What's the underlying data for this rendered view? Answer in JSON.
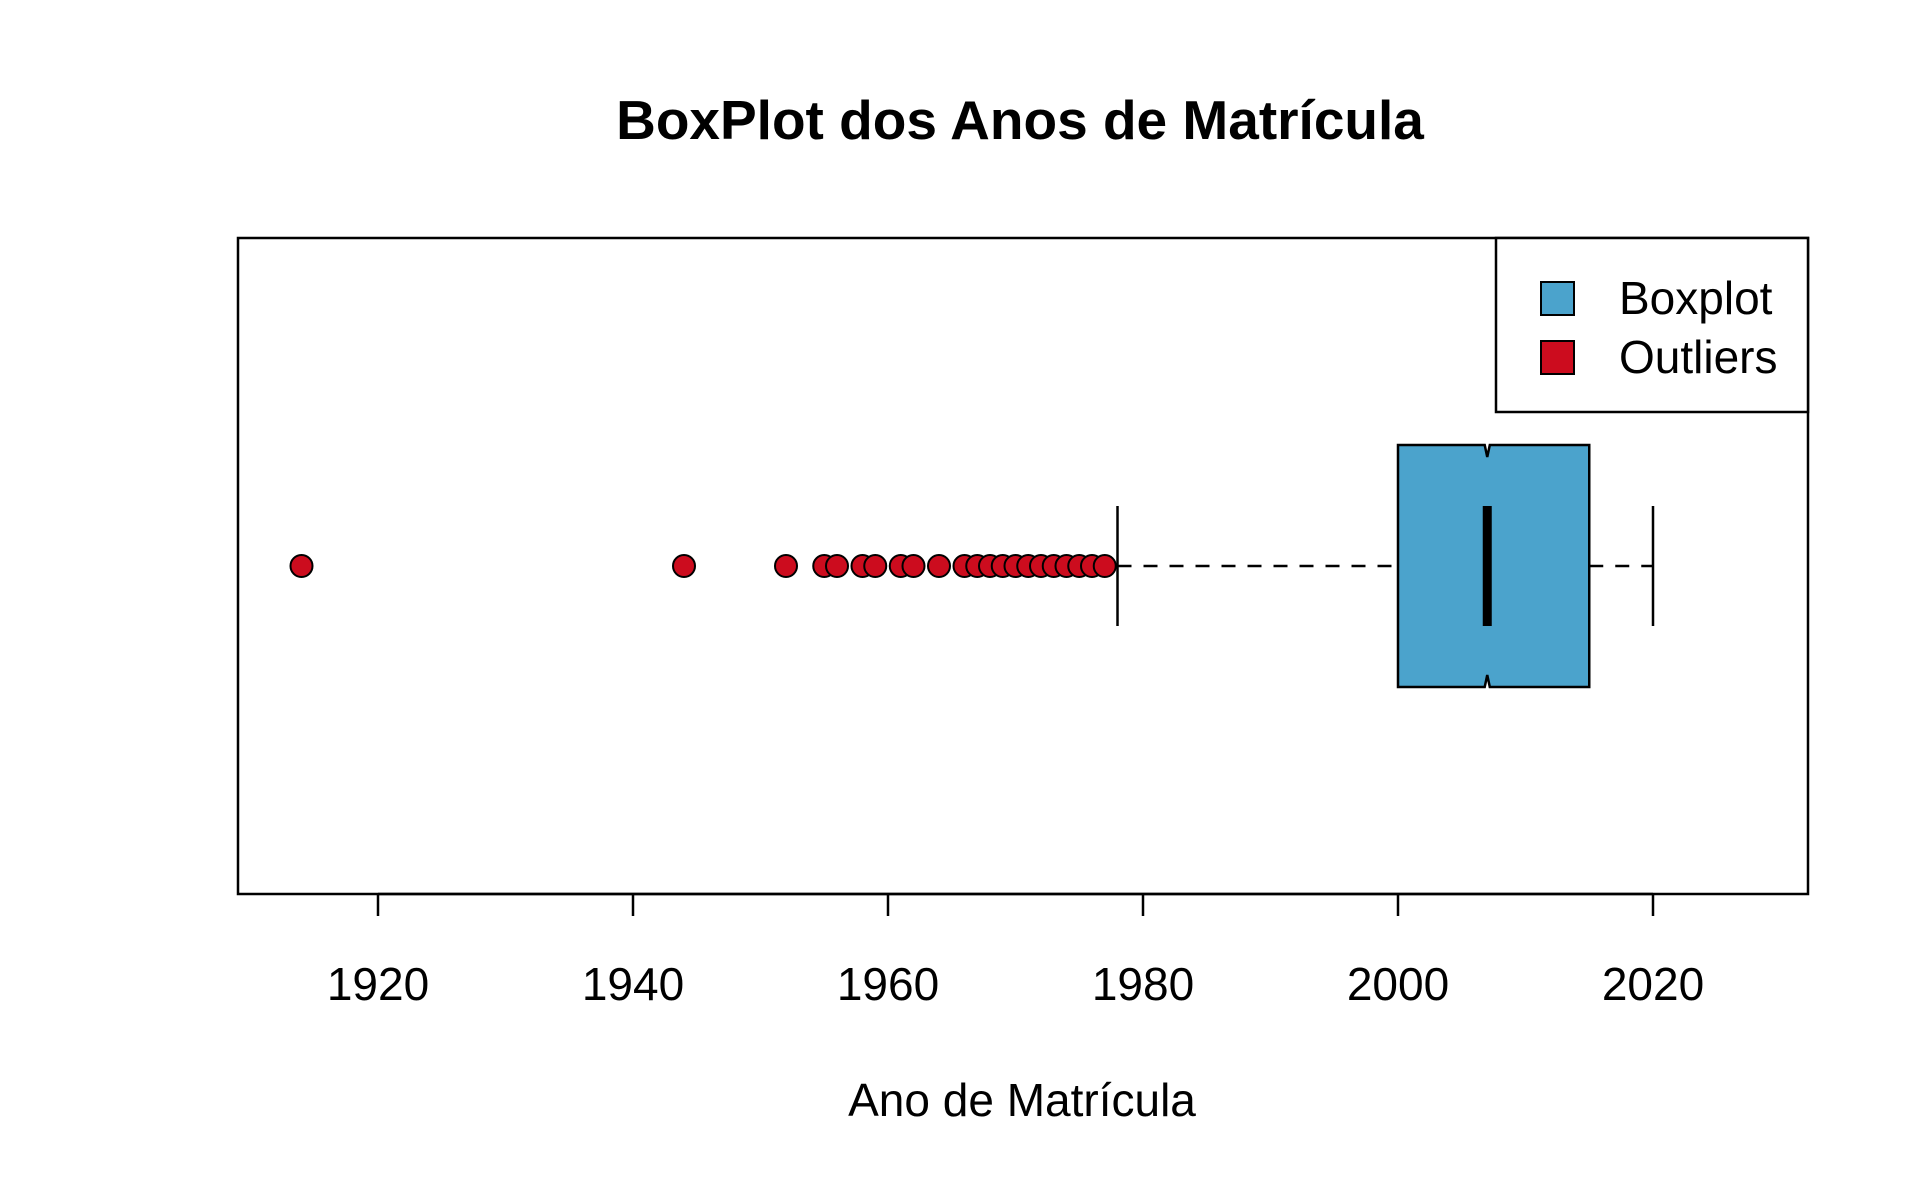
{
  "chart_data": {
    "type": "boxplot",
    "orientation": "horizontal",
    "title": "BoxPlot dos Anos de Matrícula",
    "xlabel": "Ano de Matrícula",
    "ylabel": "",
    "xlim": [
      1910,
      2024
    ],
    "x_ticks": [
      1920,
      1940,
      1960,
      1980,
      2000,
      2020
    ],
    "x_tick_labels": [
      "1920",
      "1940",
      "1960",
      "1980",
      "2000",
      "2020"
    ],
    "notched": true,
    "box": {
      "whisker_low": 1978,
      "q1": 2000,
      "median": 2007,
      "q3": 2015,
      "whisker_high": 2020,
      "notch_low": 2006.8,
      "notch_high": 2007.2
    },
    "outliers": [
      1914,
      1944,
      1952,
      1955,
      1956,
      1958,
      1959,
      1961,
      1962,
      1964,
      1966,
      1967,
      1968,
      1969,
      1970,
      1971,
      1972,
      1973,
      1974,
      1975,
      1976,
      1977
    ],
    "legend": {
      "position": "top-right",
      "entries": [
        {
          "label": "Boxplot",
          "color": "#4ba3cc"
        },
        {
          "label": "Outliers",
          "color": "#cc0c1e"
        }
      ]
    },
    "colors": {
      "box_fill": "#4ba3cc",
      "outlier_fill": "#cc0c1e",
      "stroke": "#000000"
    }
  }
}
